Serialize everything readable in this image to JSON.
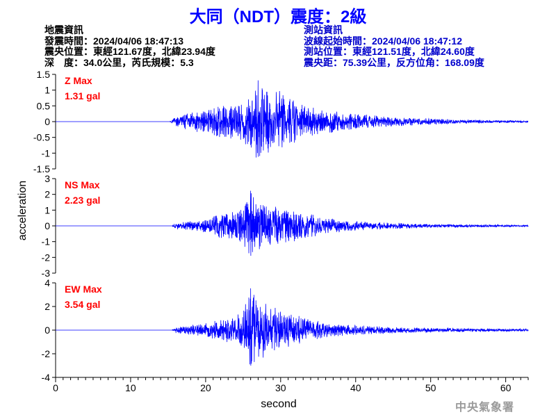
{
  "title": "大同（NDT）震度：2級",
  "earthquake_info": {
    "heading": "地震資訊",
    "origin_time": "發震時間：2024/04/06 18:47:13",
    "epicenter": "震央位置：東經121.67度，北緯23.94度",
    "depth_magnitude": "深　度：34.0公里，芮氏規模：5.3"
  },
  "station_info": {
    "heading": "測站資訊",
    "waveform_start": "波線起始時間：2024/04/06 18:47:12",
    "station_location": "測站位置：東經121.51度，北緯24.60度",
    "distance_azimuth": "震央距：75.39公里，反方位角：168.09度"
  },
  "watermark": "中央氣象署",
  "colors": {
    "trace": "#0000ff",
    "max_label": "#ff0000",
    "axis": "#000000"
  },
  "chart_data": {
    "type": "line",
    "xlabel": "second",
    "ylabel": "acceleration",
    "xlim": [
      0,
      63
    ],
    "xticks": [
      0,
      10,
      20,
      30,
      40,
      50,
      60
    ],
    "grid": false,
    "panels": [
      {
        "name": "Z Max",
        "max_value": "1.31 gal",
        "ylim": [
          -1.5,
          1.5
        ],
        "yticks": [
          -1.5,
          -1,
          -0.5,
          0,
          0.5,
          1,
          1.5
        ],
        "envelope": [
          [
            0,
            0
          ],
          [
            15.2,
            0
          ],
          [
            16,
            0.15
          ],
          [
            18,
            0.3
          ],
          [
            20,
            0.4
          ],
          [
            22,
            0.55
          ],
          [
            24,
            0.6
          ],
          [
            26,
            0.8
          ],
          [
            27,
            1.31
          ],
          [
            28,
            1.0
          ],
          [
            30,
            1.0
          ],
          [
            31,
            0.8
          ],
          [
            33,
            0.55
          ],
          [
            35,
            0.45
          ],
          [
            38,
            0.3
          ],
          [
            40,
            0.25
          ],
          [
            45,
            0.15
          ],
          [
            50,
            0.1
          ],
          [
            55,
            0.06
          ],
          [
            63,
            0.03
          ]
        ]
      },
      {
        "name": "NS Max",
        "max_value": "2.23 gal",
        "ylim": [
          -3,
          3
        ],
        "yticks": [
          -3,
          -2,
          -1,
          0,
          1,
          2,
          3
        ],
        "envelope": [
          [
            0,
            0
          ],
          [
            15.5,
            0
          ],
          [
            16,
            0.2
          ],
          [
            18,
            0.3
          ],
          [
            20,
            0.45
          ],
          [
            22,
            0.8
          ],
          [
            24,
            1.0
          ],
          [
            25,
            1.4
          ],
          [
            26,
            2.23
          ],
          [
            27,
            1.6
          ],
          [
            28,
            1.4
          ],
          [
            30,
            1.2
          ],
          [
            32,
            1.0
          ],
          [
            34,
            0.8
          ],
          [
            36,
            0.5
          ],
          [
            40,
            0.3
          ],
          [
            45,
            0.2
          ],
          [
            50,
            0.12
          ],
          [
            55,
            0.1
          ],
          [
            63,
            0.06
          ]
        ]
      },
      {
        "name": "EW Max",
        "max_value": "3.54 gal",
        "ylim": [
          -4,
          4
        ],
        "yticks": [
          -4,
          -2,
          0,
          2,
          4
        ],
        "envelope": [
          [
            0,
            0
          ],
          [
            15.5,
            0
          ],
          [
            16,
            0.25
          ],
          [
            18,
            0.45
          ],
          [
            20,
            0.6
          ],
          [
            22,
            0.9
          ],
          [
            24,
            1.2
          ],
          [
            25,
            2.0
          ],
          [
            26,
            3.54
          ],
          [
            27,
            2.3
          ],
          [
            28,
            2.5
          ],
          [
            30,
            1.6
          ],
          [
            32,
            1.3
          ],
          [
            34,
            1.0
          ],
          [
            36,
            0.6
          ],
          [
            40,
            0.4
          ],
          [
            45,
            0.3
          ],
          [
            50,
            0.2
          ],
          [
            55,
            0.15
          ],
          [
            63,
            0.12
          ]
        ]
      }
    ]
  }
}
